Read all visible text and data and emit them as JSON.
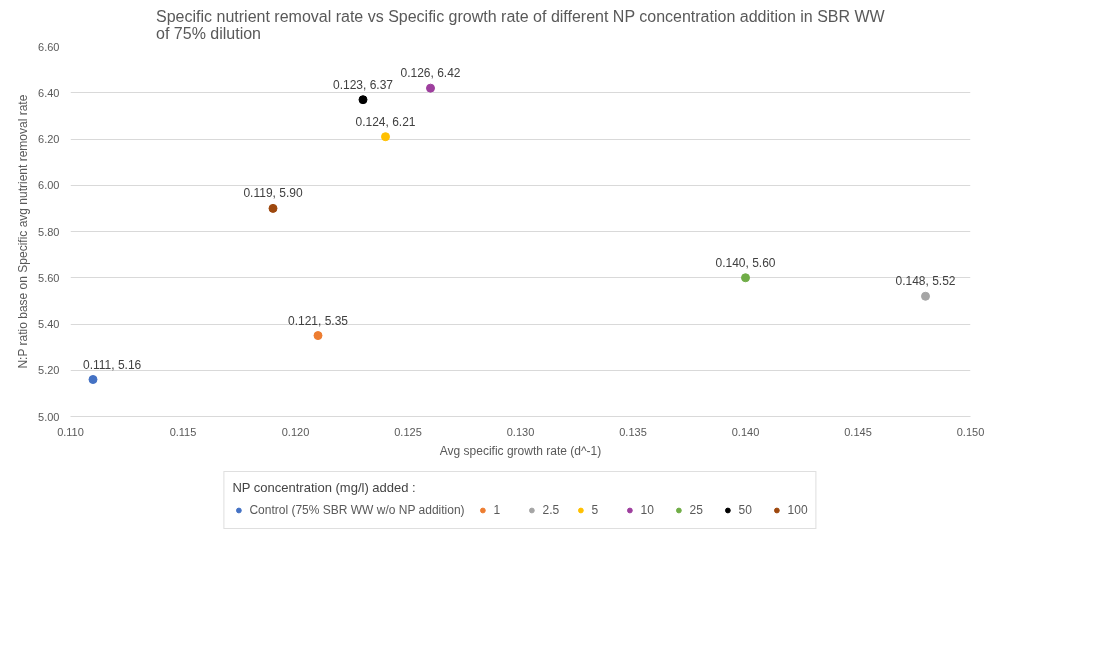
{
  "chart_data": {
    "type": "scatter",
    "title": "Specific nutrient removal rate vs Specific growth rate of different NP concentration addition in SBR WW\nof 75% dilution",
    "xlabel": "Avg specific growth rate (d^-1)",
    "ylabel": "N:P ratio base on Specific avg nutrient removal rate",
    "legend_title": "NP concentration (mg/l) added :",
    "legend": "bottom",
    "grid": "y",
    "marker": "circle",
    "xlim": [
      0.11,
      0.15
    ],
    "ylim": [
      5.0,
      6.6
    ],
    "xticks": [
      {
        "value": 0.11,
        "label": "0.110"
      },
      {
        "value": 0.115,
        "label": "0.115"
      },
      {
        "value": 0.12,
        "label": "0.120"
      },
      {
        "value": 0.125,
        "label": "0.125"
      },
      {
        "value": 0.13,
        "label": "0.130"
      },
      {
        "value": 0.135,
        "label": "0.135"
      },
      {
        "value": 0.14,
        "label": "0.140"
      },
      {
        "value": 0.145,
        "label": "0.145"
      },
      {
        "value": 0.15,
        "label": "0.150"
      }
    ],
    "yticks": [
      {
        "value": 5.0,
        "label": "5.00"
      },
      {
        "value": 5.2,
        "label": "5.20"
      },
      {
        "value": 5.4,
        "label": "5.40"
      },
      {
        "value": 5.6,
        "label": "5.60"
      },
      {
        "value": 5.8,
        "label": "5.80"
      },
      {
        "value": 6.0,
        "label": "6.00"
      },
      {
        "value": 6.2,
        "label": "6.20"
      },
      {
        "value": 6.4,
        "label": "6.40"
      },
      {
        "value": 6.6,
        "label": "6.60"
      }
    ],
    "series": [
      {
        "name": "Control (75% SBR WW w/o NP addition)",
        "color": "#4472c4",
        "x": [
          0.111
        ],
        "values": [
          5.16
        ],
        "value_labels": [
          "0.111, 5.16"
        ]
      },
      {
        "name": "1",
        "color": "#ed7d31",
        "x": [
          0.121
        ],
        "values": [
          5.35
        ],
        "value_labels": [
          "0.121, 5.35"
        ]
      },
      {
        "name": "2.5",
        "color": "#a5a5a5",
        "x": [
          0.148
        ],
        "values": [
          5.52
        ],
        "value_labels": [
          "0.148, 5.52"
        ]
      },
      {
        "name": "5",
        "color": "#ffc000",
        "x": [
          0.124
        ],
        "values": [
          6.21
        ],
        "value_labels": [
          "0.124, 6.21"
        ]
      },
      {
        "name": "10",
        "color": "#9e3f9e",
        "x": [
          0.126
        ],
        "values": [
          6.42
        ],
        "value_labels": [
          "0.126, 6.42"
        ]
      },
      {
        "name": "25",
        "color": "#70ad47",
        "x": [
          0.14
        ],
        "values": [
          5.6
        ],
        "value_labels": [
          "0.140, 5.60"
        ]
      },
      {
        "name": "50",
        "color": "#000000",
        "x": [
          0.123
        ],
        "values": [
          6.37
        ],
        "value_labels": [
          "0.123, 6.37"
        ]
      },
      {
        "name": "100",
        "color": "#9e480e",
        "x": [
          0.119
        ],
        "values": [
          5.9
        ],
        "value_labels": [
          "0.119, 5.90"
        ]
      }
    ]
  }
}
